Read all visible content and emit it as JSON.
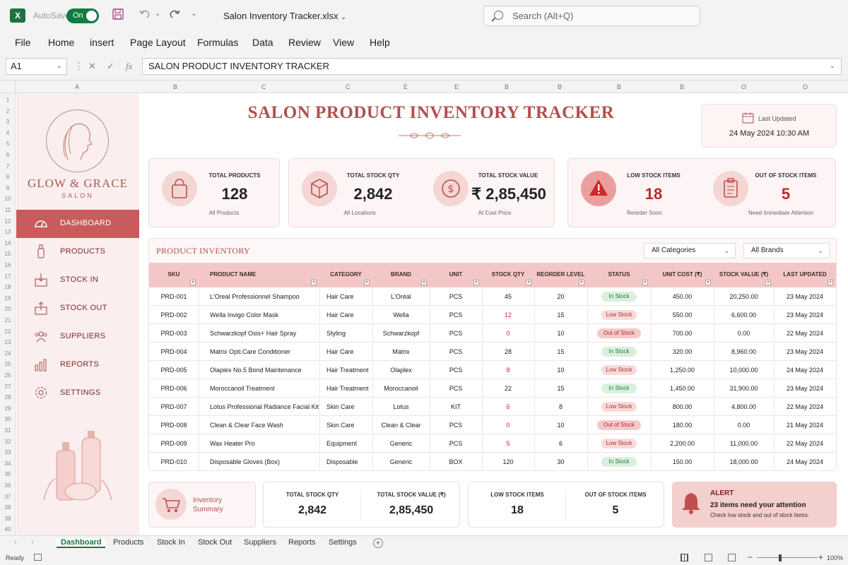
{
  "app": {
    "autosave_label": "AutoSave",
    "autosave_state": "On",
    "filename": "Salon Inventory Tracker.xlsx",
    "search_placeholder": "Search (Alt+Q)",
    "icons": [
      "excel-logo-icon",
      "save-icon",
      "undo-icon",
      "redo-icon",
      "search-icon"
    ]
  },
  "menu": [
    "File",
    "Home",
    "insert",
    "Page Layout",
    "Formulas",
    "Data",
    "Review",
    "View",
    "Help"
  ],
  "formula_bar": {
    "cell_ref": "A1",
    "content": "SALON PRODUCT INVENTORY TRACKER"
  },
  "columns": [
    "A",
    "B",
    "C",
    "C",
    "E",
    "E",
    "B",
    "B",
    "B",
    "B",
    "O",
    "O"
  ],
  "rows": [
    "1",
    "2",
    "3",
    "4",
    "5",
    "6",
    "7",
    "8",
    "9",
    "10",
    "11",
    "12",
    "13",
    "14",
    "15",
    "16",
    "17",
    "18",
    "19",
    "20",
    "21",
    "22",
    "23",
    "24",
    "25",
    "26",
    "27",
    "28",
    "29",
    "30",
    "31",
    "32",
    "33",
    "34",
    "35",
    "36",
    "37",
    "38",
    "39",
    "40"
  ],
  "brand": {
    "name": "GLOW & GRACE",
    "sub": "SALON"
  },
  "nav": [
    {
      "label": "DASHBOARD",
      "icon": "dashboard-icon",
      "active": true
    },
    {
      "label": "PRODUCTS",
      "icon": "bottle-icon",
      "active": false
    },
    {
      "label": "STOCK IN",
      "icon": "stock-in-icon",
      "active": false
    },
    {
      "label": "STOCK OUT",
      "icon": "stock-out-icon",
      "active": false
    },
    {
      "label": "SUPPLIERS",
      "icon": "users-icon",
      "active": false
    },
    {
      "label": "REPORTS",
      "icon": "bar-chart-icon",
      "active": false
    },
    {
      "label": "SETTINGS",
      "icon": "gear-icon",
      "active": false
    }
  ],
  "header": {
    "title": "SALON PRODUCT INVENTORY TRACKER",
    "last_updated_label": "Last Updated",
    "last_updated_value": "24 May 2024 10:30 AM"
  },
  "kpis": {
    "total_products": {
      "label": "TOTAL PRODUCTS",
      "value": "128",
      "sub": "All Products"
    },
    "total_stock_qty": {
      "label": "TOTAL STOCK QTY",
      "value": "2,842",
      "sub": "All Locations"
    },
    "total_stock_value": {
      "label": "TOTAL STOCK VALUE",
      "value": "₹ 2,85,450",
      "sub": "At Cost Price"
    },
    "low_stock": {
      "label": "LOW STOCK ITEMS",
      "value": "18",
      "sub": "Reorder Soon"
    },
    "out_of_stock": {
      "label": "OUT OF STOCK ITEMS",
      "value": "5",
      "sub": "Need Immediate Attention"
    }
  },
  "inventory": {
    "title": "PRODUCT INVENTORY",
    "filter_category": "All Categories",
    "filter_brand": "All Brands",
    "headers": [
      "SKU",
      "PRODUCT NAME",
      "CATEGORY",
      "BRAND",
      "UNIT",
      "STOCK QTY",
      "REORDER LEVEL",
      "STATUS",
      "UNIT COST (₹)",
      "STOCK VALUE (₹)",
      "LAST UPDATED"
    ],
    "rows": [
      [
        "PRD-001",
        "L'Oreal Professionnel Shampoo",
        "Hair Care",
        "L'Oréal",
        "PCS",
        "45",
        "20",
        "In Stock",
        "450.00",
        "20,250.00",
        "23 May 2024"
      ],
      [
        "PRD-002",
        "Wella Invigo Color Mask",
        "Hair Care",
        "Wella",
        "PCS",
        "12",
        "15",
        "Low Stock",
        "550.00",
        "6,600.00",
        "23 May 2024"
      ],
      [
        "PRD-003",
        "Schwarzkopf Osis+ Hair Spray",
        "Styling",
        "Schwarzkopf",
        "PCS",
        "0",
        "10",
        "Out of Stock",
        "700.00",
        "0.00",
        "22 May 2024"
      ],
      [
        "PRD-004",
        "Matrix Opti.Care Conditioner",
        "Hair Care",
        "Matrix",
        "PCS",
        "28",
        "15",
        "In Stock",
        "320.00",
        "8,960.00",
        "23 May 2024"
      ],
      [
        "PRD-005",
        "Olaplex No.5 Bond Maintenance",
        "Hair Treatment",
        "Olaplex",
        "PCS",
        "8",
        "10",
        "Low Stock",
        "1,250.00",
        "10,000.00",
        "24 May 2024"
      ],
      [
        "PRD-006",
        "Moroccanoil Treatment",
        "Hair Treatment",
        "Moroccanoil",
        "PCS",
        "22",
        "15",
        "In Stock",
        "1,450.00",
        "31,900.00",
        "23 May 2024"
      ],
      [
        "PRD-007",
        "Lotus Professional Radiance Facial Kit",
        "Skin Care",
        "Lotus",
        "KIT",
        "6",
        "8",
        "Low Stock",
        "800.00",
        "4,800.00",
        "22 May 2024"
      ],
      [
        "PRD-008",
        "Clean & Clear Face Wash",
        "Skin Care",
        "Clean & Clear",
        "PCS",
        "0",
        "10",
        "Out of Stock",
        "180.00",
        "0.00",
        "21 May 2024"
      ],
      [
        "PRD-009",
        "Wax Heater Pro",
        "Equipment",
        "Generic",
        "PCS",
        "5",
        "6",
        "Low Stock",
        "2,200.00",
        "11,000.00",
        "22 May 2024"
      ],
      [
        "PRD-010",
        "Disposable Gloves (Box)",
        "Disposable",
        "Generic",
        "BOX",
        "120",
        "30",
        "In Stock",
        "150.00",
        "18,000.00",
        "24 May 2024"
      ]
    ]
  },
  "summary": {
    "title": "Inventory Summary",
    "title_line1": "Inventory",
    "title_line2": "Summary",
    "qty_label": "TOTAL STOCK QTY",
    "qty_value": "2,842",
    "value_label": "TOTAL STOCK VALUE (₹)",
    "value_value": "2,85,450",
    "low_label": "LOW STOCK ITEMS",
    "low_value": "18",
    "out_label": "OUT OF STOCK ITEMS",
    "out_value": "5"
  },
  "alert": {
    "title": "ALERT",
    "message": "23 items need your attention",
    "sub": "Check low stock and out of stock items."
  },
  "sheets": [
    {
      "label": "Dashboard",
      "active": true
    },
    {
      "label": "Products",
      "active": false
    },
    {
      "label": "Stock In",
      "active": false
    },
    {
      "label": "Stock Out",
      "active": false
    },
    {
      "label": "Suppliers",
      "active": false
    },
    {
      "label": "Reports",
      "active": false
    },
    {
      "label": "Settings",
      "active": false
    }
  ],
  "status": {
    "ready": "Ready",
    "zoom": "100%"
  },
  "colors": {
    "accent": "#c85c5c",
    "excel_green": "#1e7145",
    "badge_green": "#1e7a36",
    "badge_red": "#b52a2a"
  }
}
